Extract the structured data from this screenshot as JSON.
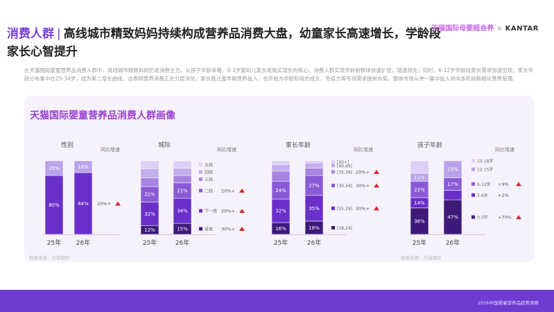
{
  "header": {
    "tag": "消费人群",
    "title": "高线城市精致妈妈持续构成营养品消费大盘，幼童家长高速增长，学龄段家长心智提升"
  },
  "brand": {
    "tmall": "天猫国际母婴超会养",
    "x": "×",
    "kantar": "KANTAR"
  },
  "description": "在天猫国际婴童营养品消费人群中，高线城市精致妈妈仍是消费主力。从孩子年龄来看，0-3岁婴幼儿家长是购买增长的核心，消费人群实现学龄前群体快速扩张，增速领先；同时，6-12岁学龄段家长需求加速显现。家长年龄分布集中在25-34岁，成为第二增长曲线。这表明营养消费正在分层深化，家长既注重早期营养投入，也开始为学龄阶段的成长、免疫力等专项需求提前布局。整体市场从单一集中投入转向多阶段精细化营养管理。",
  "card": {
    "title": "天猫国际婴童营养品消费人群画像",
    "source_left": "数据来源：天猫国际",
    "source_right": "数据来源：天猫国际"
  },
  "footer": {
    "text": "2026中国婴童营养品趋势洞察"
  },
  "chart_data": [
    {
      "type": "bar",
      "title": "性别",
      "growth_header": "同比增速",
      "categories": [
        "25年",
        "26年"
      ],
      "series": [
        {
          "label": "",
          "values": [
            80,
            84
          ],
          "value_labels": [
            "80%",
            "84%"
          ],
          "color": "#6a2fc9"
        },
        {
          "label": "",
          "values": [
            20,
            16
          ],
          "value_labels": [
            "20%",
            "16%"
          ],
          "color": "#b9a3ea"
        }
      ],
      "growth": [
        {
          "series_index": 0,
          "text": "20%+",
          "arrow": "up"
        }
      ]
    },
    {
      "type": "bar",
      "title": "城际",
      "growth_header": "同比增速",
      "categories": [
        "25年",
        "26年"
      ],
      "series": [
        {
          "label": "其他",
          "values": [
            12,
            15
          ],
          "value_labels": [
            "12%",
            "15%"
          ],
          "color": "#3d1a7a"
        },
        {
          "label": "下一线",
          "values": [
            32,
            34
          ],
          "value_labels": [
            "32%",
            "34%"
          ],
          "color": "#6a2fc9"
        },
        {
          "label": "二线",
          "values": [
            21,
            21
          ],
          "value_labels": [
            "21%",
            "21%"
          ],
          "color": "#8a5ad6"
        },
        {
          "label": "三线",
          "values": [
            12,
            10
          ],
          "value_labels": [
            "",
            ""
          ],
          "color": "#a784e0"
        },
        {
          "label": "四线",
          "values": [
            12,
            10
          ],
          "value_labels": [
            "",
            ""
          ],
          "color": "#c4aeec"
        },
        {
          "label": "五线",
          "values": [
            11,
            10
          ],
          "value_labels": [
            "",
            ""
          ],
          "color": "#ddd0f5"
        }
      ],
      "growth": [
        {
          "series_index": 0,
          "text": "30%+",
          "arrow": "up"
        },
        {
          "series_index": 1,
          "text": "20%+",
          "arrow": "up"
        },
        {
          "series_index": 2,
          "text": "20%+",
          "arrow": "up"
        }
      ]
    },
    {
      "type": "bar",
      "title": "家长年龄",
      "growth_header": "同比增速",
      "categories": [
        "25年",
        "26年"
      ],
      "series": [
        {
          "label": "[18,24]",
          "values": [
            16,
            18
          ],
          "value_labels": [
            "16%",
            "18%"
          ],
          "color": "#3d1a7a"
        },
        {
          "label": "[25,29]",
          "values": [
            32,
            35
          ],
          "value_labels": [
            "32%",
            "35%"
          ],
          "color": "#6a2fc9"
        },
        {
          "label": "[30,34]",
          "values": [
            24,
            27
          ],
          "value_labels": [
            "24%",
            "27%"
          ],
          "color": "#8a5ad6"
        },
        {
          "label": "[35,39]",
          "values": [
            14,
            10
          ],
          "value_labels": [
            "",
            ""
          ],
          "color": "#a784e0"
        },
        {
          "label": "[40,49]",
          "values": [
            9,
            7
          ],
          "value_labels": [
            "",
            ""
          ],
          "color": "#c4aeec"
        },
        {
          "label": "[50+]",
          "values": [
            5,
            3
          ],
          "value_labels": [
            "",
            ""
          ],
          "color": "#ddd0f5"
        }
      ],
      "growth": [
        {
          "series_index": 1,
          "text": "20%+",
          "arrow": "up"
        },
        {
          "series_index": 2,
          "text": "30%+",
          "arrow": "up"
        },
        {
          "series_index": 3,
          "text": "20%+",
          "arrow": "up"
        }
      ]
    },
    {
      "type": "bar",
      "title": "孩子年龄",
      "growth_header": "同比增速",
      "categories": [
        "25年",
        "26年"
      ],
      "series": [
        {
          "label": "0-3岁",
          "values": [
            36,
            47
          ],
          "value_labels": [
            "36%",
            "47%"
          ],
          "color": "#3d1a7a"
        },
        {
          "label": "3-6岁",
          "values": [
            14,
            13
          ],
          "value_labels": [
            "14%",
            ""
          ],
          "color": "#6a2fc9"
        },
        {
          "label": "6-12岁",
          "values": [
            22,
            17
          ],
          "value_labels": [
            "22%",
            "17%"
          ],
          "color": "#8a5ad6"
        },
        {
          "label": "12-15岁",
          "values": [
            11,
            23
          ],
          "value_labels": [
            "11%",
            "23%"
          ],
          "color": "#b9a3ea"
        },
        {
          "label": "15-18岁",
          "values": [
            17,
            0
          ],
          "value_labels": [
            "",
            ""
          ],
          "color": "#ddd0f5"
        }
      ],
      "growth": [
        {
          "series_index": 0,
          "text": "+70%",
          "arrow": "up"
        },
        {
          "series_index": 1,
          "text": "+2%",
          "arrow": "none"
        },
        {
          "series_index": 2,
          "text": "+9%",
          "arrow": "up"
        }
      ]
    }
  ]
}
